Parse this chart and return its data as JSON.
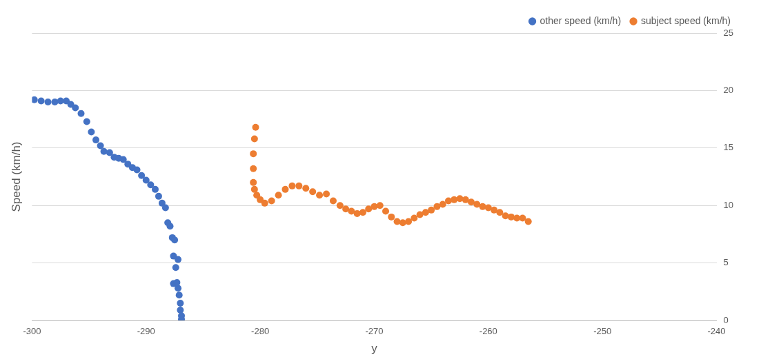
{
  "chart_data": {
    "type": "scatter",
    "xlabel": "y",
    "ylabel": "Speed (km/h)",
    "xlim": [
      -300,
      -240
    ],
    "xticks": [
      -300,
      -290,
      -280,
      -270,
      -260,
      -250,
      -240
    ],
    "ylim": [
      0,
      25
    ],
    "yticks": [
      0,
      5,
      10,
      15,
      20,
      25
    ],
    "grid": "y",
    "legend": "top right",
    "marker": "circle",
    "series": [
      {
        "name": "other speed (km/h)",
        "color": "#4472c4",
        "x": [
          -299.8,
          -299.2,
          -298.6,
          -298.0,
          -297.5,
          -297.0,
          -296.6,
          -296.2,
          -295.7,
          -295.2,
          -294.8,
          -294.4,
          -294.0,
          -293.7,
          -293.2,
          -292.8,
          -292.4,
          -292.0,
          -291.6,
          -291.2,
          -290.8,
          -290.4,
          -290.0,
          -289.6,
          -289.2,
          -288.9,
          -288.6,
          -288.3,
          -288.1,
          -287.9,
          -287.7,
          -287.5,
          -287.6,
          -287.2,
          -287.4,
          -287.6,
          -287.3,
          -287.2,
          -287.1,
          -287.0,
          -287.0,
          -286.9,
          -286.9
        ],
        "values": [
          19.2,
          19.1,
          19.0,
          19.0,
          19.1,
          19.1,
          18.8,
          18.5,
          18.0,
          17.3,
          16.4,
          15.7,
          15.2,
          14.7,
          14.6,
          14.2,
          14.1,
          14.0,
          13.6,
          13.3,
          13.1,
          12.6,
          12.2,
          11.8,
          11.4,
          10.8,
          10.2,
          9.8,
          8.5,
          8.2,
          7.2,
          7.0,
          5.6,
          5.3,
          4.6,
          3.2,
          3.3,
          2.8,
          2.2,
          1.5,
          0.9,
          0.4,
          0.1
        ]
      },
      {
        "name": "subject speed (km/h)",
        "color": "#ed7d31",
        "x": [
          -280.4,
          -280.5,
          -280.6,
          -280.6,
          -280.6,
          -280.5,
          -280.3,
          -280.0,
          -279.6,
          -279.0,
          -278.4,
          -277.8,
          -277.2,
          -276.6,
          -276.0,
          -275.4,
          -274.8,
          -274.2,
          -273.6,
          -273.0,
          -272.5,
          -272.0,
          -271.5,
          -271.0,
          -270.5,
          -270.0,
          -269.5,
          -269.0,
          -268.5,
          -268.0,
          -267.5,
          -267.0,
          -266.5,
          -266.0,
          -265.5,
          -265.0,
          -264.5,
          -264.0,
          -263.5,
          -263.0,
          -262.5,
          -262.0,
          -261.5,
          -261.0,
          -260.5,
          -260.0,
          -259.5,
          -259.0,
          -258.5,
          -258.0,
          -257.5,
          -257.0,
          -256.5
        ],
        "values": [
          16.8,
          15.8,
          14.5,
          13.2,
          12.0,
          11.4,
          10.9,
          10.5,
          10.2,
          10.4,
          10.9,
          11.4,
          11.7,
          11.7,
          11.5,
          11.2,
          10.9,
          11.0,
          10.4,
          10.0,
          9.7,
          9.5,
          9.3,
          9.4,
          9.7,
          9.9,
          10.0,
          9.5,
          9.0,
          8.6,
          8.5,
          8.6,
          8.9,
          9.2,
          9.4,
          9.6,
          9.9,
          10.1,
          10.4,
          10.5,
          10.6,
          10.5,
          10.3,
          10.1,
          9.9,
          9.8,
          9.6,
          9.4,
          9.1,
          9.0,
          8.9,
          8.9,
          8.6
        ]
      }
    ]
  }
}
